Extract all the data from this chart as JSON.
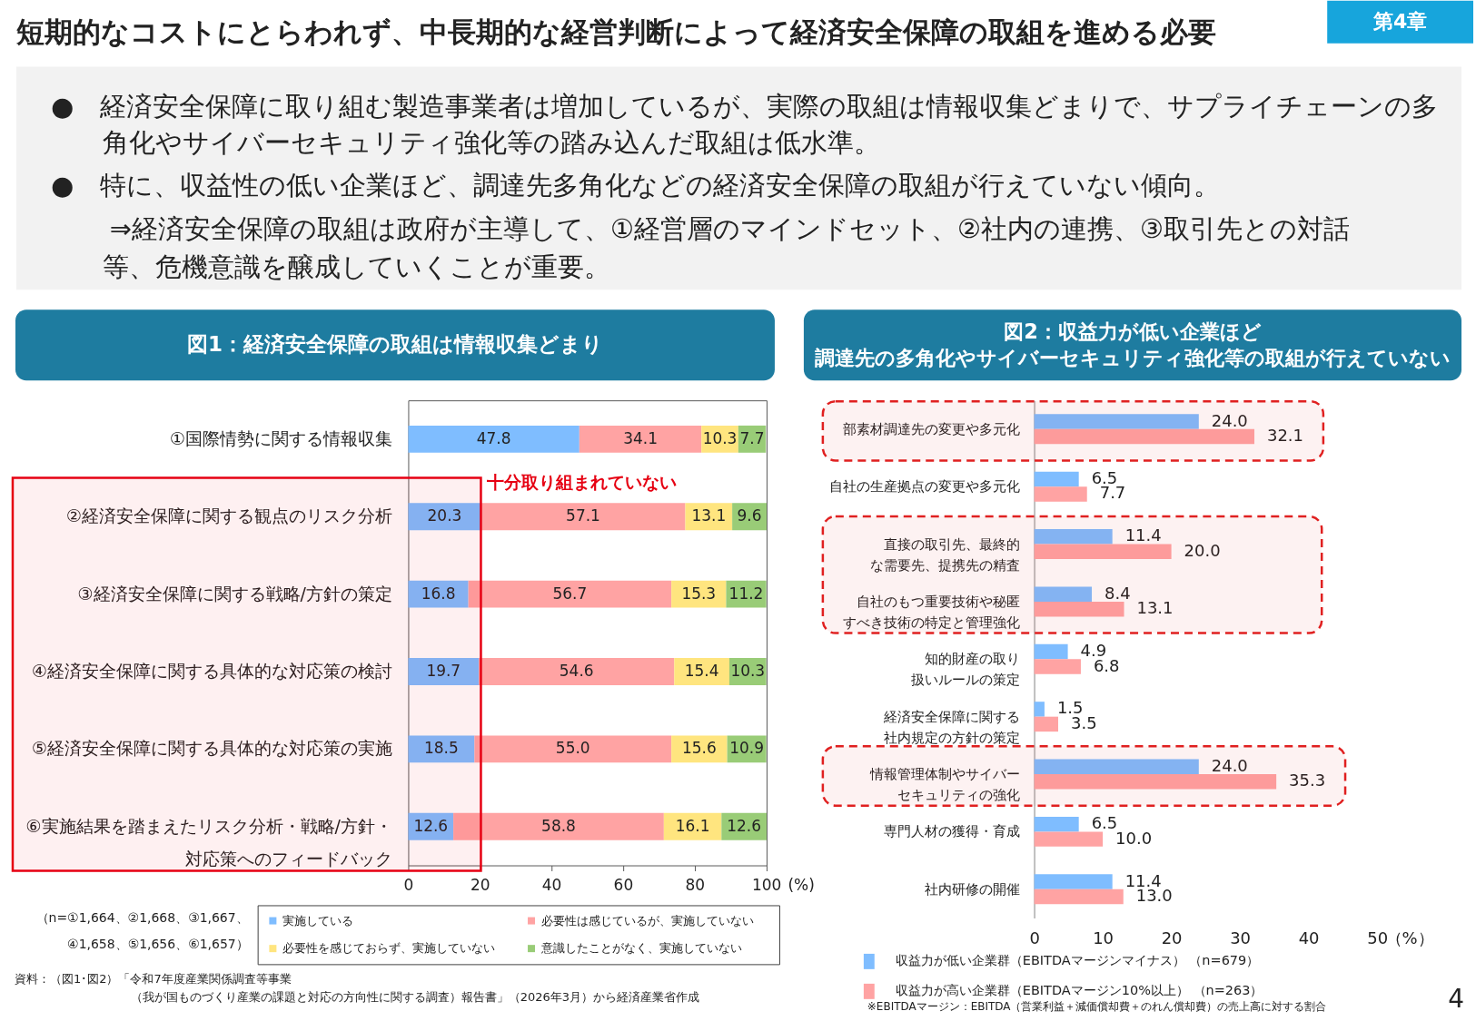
{
  "chart_data": [
    {
      "type": "other",
      "title": "短期的なコストにとらわれず、中長期的な経営判断によって経済安全保障の取組を進める必要",
      "subtitle": "第4章",
      "annotations": [
        "●　経済安全保障に取り組む製造事業者は増加しているが、実際の取組は情報収集どまりで、サプライチェーンの多角化やサイバーセキュリティ強化等の踏み込んだ取組は低水準。",
        "●　特に、収益性の低い企業ほど、調達先多角化などの経済安全保障の取組が行えていない傾向。",
        "⇒経済安全保障の取組は政府が主導して、①経営層のマインドセット、②社内の連携、③取引先との対話等、危機意識を醸成していくことが重要。",
        "4"
      ]
    },
    {
      "type": "bar",
      "orientation": "horizontal",
      "stacked": true,
      "title": "図1：経済安全保障の取組は情報収集どまり",
      "xlabel": "(%)",
      "categories": [
        "①国際情勢に関する情報収集",
        "②経済安全保障に関する観点のリスク分析",
        "③経済安全保障に関する戦略/方針の策定",
        "④経済安全保障に関する具体的な対応策の検討",
        "⑤経済安全保障に関する具体的な対応策の実施",
        "⑥実施結果を踏まえたリスク分析・戦略/方針・対応策へのフィードバック"
      ],
      "series": [
        {
          "name": "実施している",
          "color": "#7fbdff",
          "values": [
            47.8,
            20.3,
            16.8,
            19.7,
            18.5,
            12.6
          ],
          "value_labels": [
            "47.8",
            "20.3",
            "16.8",
            "19.7",
            "18.5",
            "12.6"
          ]
        },
        {
          "name": "必要性は感じているが、実施していない",
          "color": "#ffa3a3",
          "values": [
            34.1,
            57.1,
            56.7,
            54.6,
            55.0,
            58.8
          ],
          "value_labels": [
            "34.1",
            "57.1",
            "56.7",
            "54.6",
            "55.0",
            "58.8"
          ]
        },
        {
          "name": "必要性を感じておらず、実施していない",
          "color": "#ffe57f",
          "values": [
            10.3,
            13.1,
            15.3,
            15.4,
            15.6,
            16.1
          ],
          "value_labels": [
            "10.3",
            "13.1",
            "15.3",
            "15.4",
            "15.6",
            "16.1"
          ]
        },
        {
          "name": "意識したことがなく、実施していない",
          "color": "#99cc77",
          "values": [
            7.7,
            9.6,
            11.2,
            10.3,
            10.9,
            12.6
          ],
          "value_labels": [
            "7.7",
            "9.6",
            "11.2",
            "10.3",
            "10.9",
            "12.6"
          ]
        }
      ],
      "xlim": [
        0,
        100.1
      ],
      "xticks": [
        0,
        20,
        40,
        60,
        80,
        100
      ],
      "legend": "bottom",
      "bands": [
        {
          "axis": "y",
          "from": "②経済安全保障に関する観点のリスク分析",
          "to": "⑥実施結果を踏まえたリスク分析・戦略/方針・対応策へのフィードバック",
          "label": "十分取り組まれていない",
          "color": "#e60012"
        }
      ],
      "annotations": [
        "（n=①1,664、②1,668、③1,667、④1,658、⑤1,656、⑥1,657）",
        "資料：（図1･図2）「令和7年度産業関係調査等事業（我が国ものづくり産業の課題と対応の方向性に関する調査）報告書」（2026年3月）から経済産業省作成"
      ]
    },
    {
      "type": "bar",
      "orientation": "horizontal",
      "title": "図2：収益力が低い企業ほど",
      "subtitle": "調達先の多角化やサイバーセキュリティ強化等の取組が行えていない",
      "xlabel": "（%）",
      "categories": [
        "部素材調達先の変更や多元化",
        "自社の生産拠点の変更や多元化",
        "直接の取引先、最終的な需要先、提携先の精査",
        "自社のもつ重要技術や秘匿すべき技術の特定と管理強化",
        "知的財産の取り扱いルールの策定",
        "経済安全保障に関する社内規定の方針の策定",
        "情報管理体制やサイバーセキュリティの強化",
        "専門人材の獲得・育成",
        "社内研修の開催"
      ],
      "series": [
        {
          "name": "収益力が低い企業群（EBITDAマージンマイナス） （n=679）",
          "color": "#7fbdff",
          "values": [
            24.0,
            6.5,
            11.4,
            8.4,
            4.9,
            1.5,
            24.0,
            6.5,
            11.4
          ],
          "value_labels": [
            "24.0",
            "6.5",
            "11.4",
            "8.4",
            "4.9",
            "1.5",
            "24.0",
            "6.5",
            "11.4"
          ]
        },
        {
          "name": "収益力が高い企業群（EBITDAマージン10%以上） （n=263）",
          "color": "#ffa3a3",
          "values": [
            32.1,
            7.7,
            20.0,
            13.1,
            6.8,
            3.5,
            35.3,
            10.0,
            13.0
          ],
          "value_labels": [
            "32.1",
            "7.7",
            "20.0",
            "13.1",
            "6.8",
            "3.5",
            "35.3",
            "10.0",
            "13.0"
          ]
        }
      ],
      "xlim": [
        0,
        50
      ],
      "xticks": [
        0,
        10,
        20,
        30,
        40,
        50
      ],
      "legend": "bottom left",
      "bands": [
        {
          "axis": "y",
          "from": "部素材調達先の変更や多元化",
          "to": "部素材調達先の変更や多元化",
          "color": "#e02020"
        },
        {
          "axis": "y",
          "from": "直接の取引先、最終的な需要先、提携先の精査",
          "to": "自社のもつ重要技術や秘匿すべき技術の特定と管理強化",
          "color": "#e02020"
        },
        {
          "axis": "y",
          "from": "情報管理体制やサイバーセキュリティの強化",
          "to": "情報管理体制やサイバーセキュリティの強化",
          "color": "#e02020"
        }
      ],
      "annotations": [
        "※EBITDAマージン：EBITDA（営業利益＋減価償却費＋のれん償却費）の売上高に対する割合"
      ]
    }
  ]
}
